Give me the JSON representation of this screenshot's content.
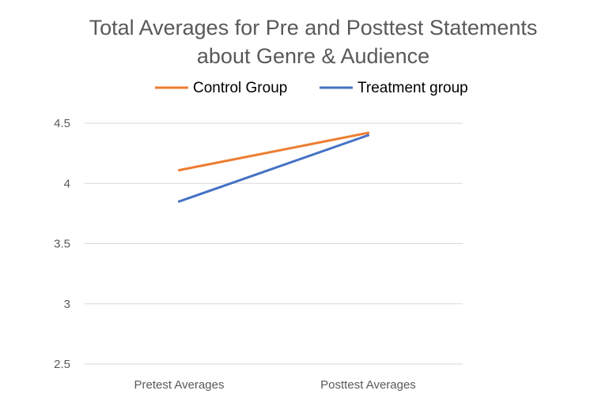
{
  "chart_data": {
    "type": "line",
    "title_lines": [
      "Total Averages for Pre and Posttest Statements",
      "about Genre & Audience"
    ],
    "categories": [
      "Pretest Averages",
      "Posttest Averages"
    ],
    "series": [
      {
        "name": "Control Group",
        "color": "#ED7D31",
        "values": [
          4.11,
          4.42
        ]
      },
      {
        "name": "Treatment group",
        "color": "#4472C4",
        "values": [
          3.85,
          4.4
        ]
      }
    ],
    "y_ticks": [
      "2.5",
      "3",
      "3.5",
      "4",
      "4.5"
    ],
    "ylim": [
      2.5,
      4.5
    ],
    "grid": true,
    "legend_position": "top"
  }
}
